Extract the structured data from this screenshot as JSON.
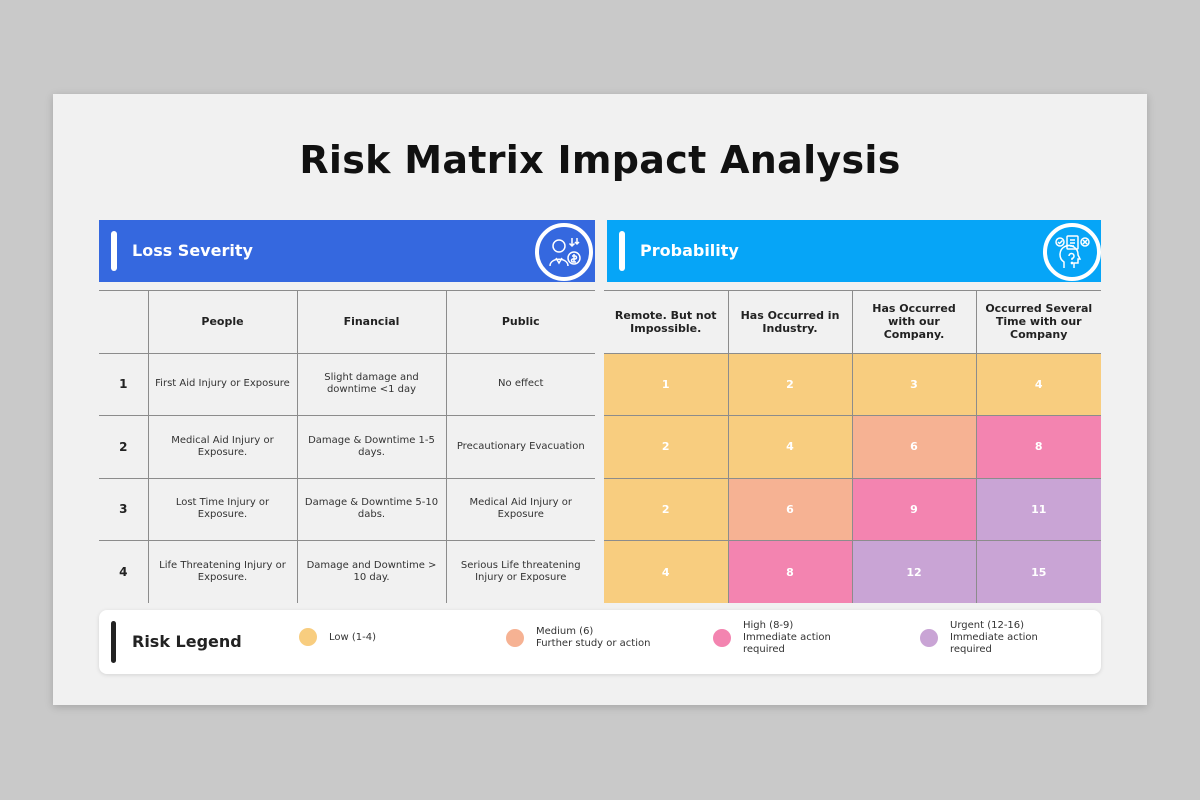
{
  "title": "Risk Matrix Impact Analysis",
  "loss_severity": {
    "heading": "Loss Severity",
    "icon": "businessman-money-icon",
    "columns": [
      "People",
      "Financial",
      "Public"
    ],
    "rows": [
      {
        "level": "1",
        "people": "First Aid Injury or Exposure",
        "financial": "Slight damage and downtime <1 day",
        "public": "No effect"
      },
      {
        "level": "2",
        "people": "Medical Aid Injury or Exposure.",
        "financial": "Damage & Downtime 1-5 days.",
        "public": "Precautionary Evacuation"
      },
      {
        "level": "3",
        "people": "Lost Time Injury or Exposure.",
        "financial": "Damage & Downtime 5-10 dabs.",
        "public": "Medical Aid Injury or Exposure"
      },
      {
        "level": "4",
        "people": "Life Threatening Injury or Exposure.",
        "financial": "Damage and Downtime > 10 day.",
        "public": "Serious Life threatening Injury or Exposure"
      }
    ]
  },
  "probability": {
    "heading": "Probability",
    "icon": "checklist-thinking-icon",
    "columns": [
      "Remote. But not Impossible.",
      "Has Occurred in Industry.",
      "Has Occurred with our Company.",
      "Occurred Several Time with our Company"
    ],
    "matrix": [
      [
        "1",
        "2",
        "3",
        "4"
      ],
      [
        "2",
        "4",
        "6",
        "8"
      ],
      [
        "2",
        "6",
        "9",
        "11"
      ],
      [
        "4",
        "8",
        "12",
        "15"
      ]
    ]
  },
  "legend": {
    "title": "Risk Legend",
    "items": [
      {
        "line1": "Low (1-4)",
        "line2": "",
        "line3": "",
        "color": "#f8cd7f"
      },
      {
        "line1": "Medium (6)",
        "line2": "Further study or action",
        "line3": "",
        "color": "#f6b293"
      },
      {
        "line1": "High (8-9)",
        "line2": "Immediate action",
        "line3": "required",
        "color": "#f384b0"
      },
      {
        "line1": "Urgent (12-16)",
        "line2": "Immediate action",
        "line3": "required",
        "color": "#c9a4d5"
      }
    ]
  },
  "colors": {
    "severity_header": "#3568df",
    "probability_header": "#06a5f7",
    "low": "#f8cd7f",
    "medium": "#f6b293",
    "high": "#f384b0",
    "urgent": "#c9a4d5"
  }
}
